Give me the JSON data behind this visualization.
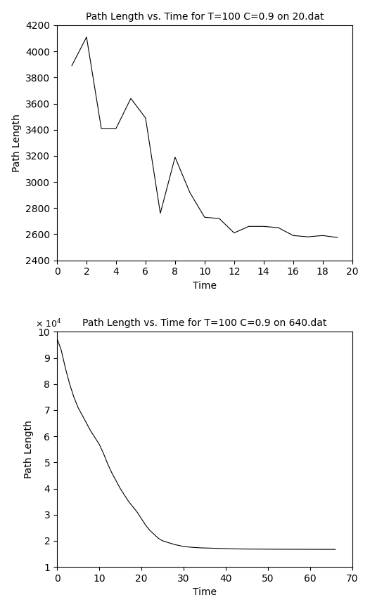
{
  "plot1": {
    "title": "Path Length vs. Time for T=100 C=0.9 on 20.dat",
    "xlabel": "Time",
    "ylabel": "Path Length",
    "xlim": [
      0,
      20
    ],
    "ylim": [
      2400,
      4200
    ],
    "xticks": [
      0,
      2,
      4,
      6,
      8,
      10,
      12,
      14,
      16,
      18,
      20
    ],
    "yticks": [
      2400,
      2600,
      2800,
      3000,
      3200,
      3400,
      3600,
      3800,
      4000,
      4200
    ],
    "x": [
      1,
      2,
      3,
      4,
      5,
      6,
      7,
      8,
      9,
      10,
      11,
      12,
      13,
      14,
      15,
      16,
      17,
      18,
      19
    ],
    "y": [
      3890,
      4110,
      3410,
      3410,
      3640,
      3490,
      2760,
      3190,
      2920,
      2730,
      2720,
      2610,
      2660,
      2660,
      2650,
      2590,
      2580,
      2590,
      2575
    ]
  },
  "plot2": {
    "title": "Path Length vs. Time for T=100 C=0.9 on 640.dat",
    "xlabel": "Time",
    "ylabel": "Path Length",
    "xlim": [
      0,
      70
    ],
    "ylim": [
      10000,
      100000
    ],
    "xticks": [
      0,
      10,
      20,
      30,
      40,
      50,
      60,
      70
    ],
    "yticks": [
      10000,
      20000,
      30000,
      40000,
      50000,
      60000,
      70000,
      80000,
      90000,
      100000
    ],
    "x": [
      0,
      1,
      2,
      3,
      4,
      5,
      6,
      7,
      8,
      9,
      10,
      11,
      12,
      13,
      14,
      15,
      16,
      17,
      18,
      19,
      20,
      21,
      22,
      23,
      24,
      25,
      26,
      27,
      28,
      29,
      30,
      32,
      34,
      36,
      38,
      40,
      42,
      44,
      46,
      48,
      50,
      52,
      54,
      56,
      58,
      60,
      62,
      64,
      66
    ],
    "y": [
      97500,
      93000,
      86000,
      80000,
      75000,
      71000,
      68000,
      65000,
      62000,
      59500,
      57000,
      53500,
      49500,
      46000,
      43000,
      40000,
      37500,
      35000,
      33000,
      31000,
      28500,
      26000,
      24000,
      22500,
      21000,
      20000,
      19500,
      19000,
      18500,
      18200,
      17800,
      17500,
      17300,
      17200,
      17100,
      17000,
      16900,
      16850,
      16820,
      16800,
      16780,
      16760,
      16750,
      16740,
      16730,
      16720,
      16710,
      16700,
      16690
    ]
  },
  "line_color": "#000000",
  "bg_color": "#ffffff",
  "title_fontsize": 10,
  "label_fontsize": 10,
  "tick_fontsize": 10
}
